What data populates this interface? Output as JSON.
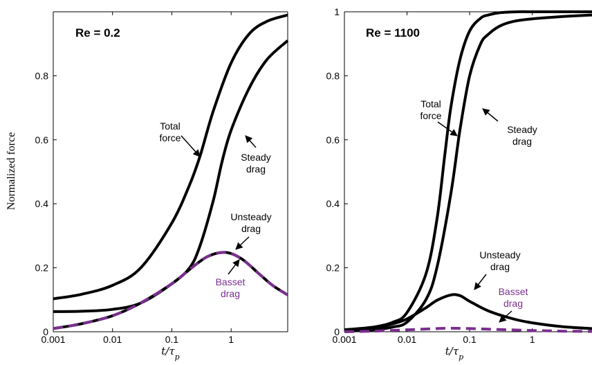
{
  "figure": {
    "ylabel": "Normalized force",
    "xlabel_main": "t",
    "xlabel_sub": "p"
  },
  "chart_data": [
    {
      "type": "line",
      "panel_label": "Re = 0.2",
      "x_scale": "log",
      "xlim": [
        0.001,
        9
      ],
      "ylim": [
        0,
        1
      ],
      "x_ticks": [
        0.001,
        0.01,
        0.1,
        1
      ],
      "x_tick_labels": [
        "0.001",
        "0.01",
        "0.1",
        "1"
      ],
      "y_ticks": [
        0,
        0.2,
        0.4,
        0.6,
        0.8
      ],
      "y_tick_labels": [
        "0",
        "0.2",
        "0.4",
        "0.6",
        "0.8"
      ],
      "grid": false,
      "series": [
        {
          "key": "total",
          "color": "#000000",
          "dashed": false,
          "x": [
            0.001,
            0.003,
            0.01,
            0.03,
            0.1,
            0.2,
            0.3,
            0.5,
            1,
            2,
            4,
            9
          ],
          "y": [
            0.103,
            0.117,
            0.145,
            0.2,
            0.34,
            0.46,
            0.55,
            0.69,
            0.84,
            0.93,
            0.97,
            0.99
          ]
        },
        {
          "key": "steady",
          "color": "#000000",
          "dashed": false,
          "x": [
            0.001,
            0.003,
            0.01,
            0.03,
            0.1,
            0.2,
            0.3,
            0.5,
            0.7,
            1,
            2,
            4,
            9
          ],
          "y": [
            0.063,
            0.064,
            0.07,
            0.09,
            0.15,
            0.2,
            0.27,
            0.41,
            0.53,
            0.63,
            0.76,
            0.85,
            0.91
          ]
        },
        {
          "key": "unsteady",
          "color": "#000000",
          "dashed": false,
          "x": [
            0.001,
            0.003,
            0.01,
            0.03,
            0.1,
            0.2,
            0.4,
            0.8,
            1.5,
            3,
            5,
            9
          ],
          "y": [
            0.01,
            0.025,
            0.05,
            0.09,
            0.15,
            0.195,
            0.235,
            0.248,
            0.228,
            0.18,
            0.145,
            0.115
          ]
        },
        {
          "key": "basset",
          "color": "#7a2f8f",
          "dashed": true,
          "x": [
            0.001,
            0.003,
            0.01,
            0.03,
            0.1,
            0.2,
            0.4,
            0.8,
            1.5,
            3,
            5,
            9
          ],
          "y": [
            0.01,
            0.025,
            0.05,
            0.09,
            0.15,
            0.195,
            0.235,
            0.248,
            0.228,
            0.18,
            0.145,
            0.115
          ]
        }
      ],
      "annotations": [
        {
          "lines": [
            "Total",
            "force"
          ],
          "purple": false
        },
        {
          "lines": [
            "Steady",
            "drag"
          ],
          "purple": false
        },
        {
          "lines": [
            "Unsteady",
            "drag"
          ],
          "purple": false
        },
        {
          "lines": [
            "Basset",
            "drag"
          ],
          "purple": true
        }
      ]
    },
    {
      "type": "line",
      "panel_label": "Re = 1100",
      "x_scale": "log",
      "xlim": [
        0.001,
        9
      ],
      "ylim": [
        0,
        1
      ],
      "x_ticks": [
        0.001,
        0.01,
        0.1,
        1
      ],
      "x_tick_labels": [
        "0.001",
        "0.01",
        "0.1",
        "1"
      ],
      "y_ticks": [
        0,
        0.2,
        0.4,
        0.6,
        0.8,
        1
      ],
      "y_tick_labels": [
        "0",
        "0.2",
        "0.4",
        "0.6",
        "0.8",
        "1"
      ],
      "grid": false,
      "series": [
        {
          "key": "total",
          "color": "#000000",
          "dashed": false,
          "x": [
            0.001,
            0.003,
            0.006,
            0.01,
            0.02,
            0.03,
            0.04,
            0.05,
            0.07,
            0.1,
            0.15,
            0.2,
            0.3,
            0.6,
            1,
            9
          ],
          "y": [
            0.006,
            0.015,
            0.03,
            0.06,
            0.18,
            0.35,
            0.55,
            0.7,
            0.85,
            0.94,
            0.98,
            0.99,
            0.997,
            1.0,
            1.0,
            1.0
          ]
        },
        {
          "key": "steady",
          "color": "#000000",
          "dashed": false,
          "x": [
            0.001,
            0.003,
            0.006,
            0.01,
            0.02,
            0.03,
            0.05,
            0.07,
            0.1,
            0.15,
            0.2,
            0.3,
            0.5,
            1,
            3,
            9
          ],
          "y": [
            0.002,
            0.006,
            0.015,
            0.03,
            0.1,
            0.2,
            0.43,
            0.63,
            0.8,
            0.9,
            0.93,
            0.955,
            0.97,
            0.978,
            0.985,
            0.99
          ]
        },
        {
          "key": "unsteady",
          "color": "#000000",
          "dashed": false,
          "x": [
            0.001,
            0.003,
            0.006,
            0.01,
            0.02,
            0.03,
            0.05,
            0.07,
            0.1,
            0.2,
            0.5,
            1,
            3,
            9
          ],
          "y": [
            0.005,
            0.012,
            0.025,
            0.04,
            0.075,
            0.098,
            0.115,
            0.113,
            0.095,
            0.065,
            0.04,
            0.028,
            0.016,
            0.01
          ]
        },
        {
          "key": "basset",
          "color": "#7a2f8f",
          "dashed": true,
          "x": [
            0.001,
            0.003,
            0.01,
            0.03,
            0.05,
            0.1,
            0.3,
            1,
            3,
            9
          ],
          "y": [
            0.0,
            0.002,
            0.006,
            0.01,
            0.011,
            0.01,
            0.007,
            0.004,
            0.002,
            0.001
          ]
        }
      ],
      "annotations": [
        {
          "lines": [
            "Total",
            "force"
          ],
          "purple": false
        },
        {
          "lines": [
            "Steady",
            "drag"
          ],
          "purple": false
        },
        {
          "lines": [
            "Unsteady",
            "drag"
          ],
          "purple": false
        },
        {
          "lines": [
            "Basset",
            "drag"
          ],
          "purple": true
        }
      ]
    }
  ]
}
